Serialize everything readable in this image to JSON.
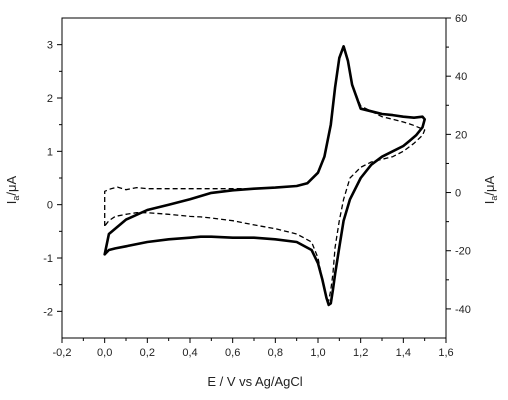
{
  "chart_data": {
    "type": "line",
    "xlabel": "E / V vs Ag/AgCl",
    "ylabel_left": {
      "main": "I",
      "sub": "a",
      "unit": "/μA"
    },
    "ylabel_right": {
      "main": "I",
      "sub": "a",
      "unit": "/μA"
    },
    "xlim": [
      -0.2,
      1.6
    ],
    "ylim_left": [
      -2.5,
      3.5
    ],
    "ylim_right": [
      -50,
      60
    ],
    "x_ticks": [
      -0.2,
      0.0,
      0.2,
      0.4,
      0.6,
      0.8,
      1.0,
      1.2,
      1.4,
      1.6
    ],
    "x_tick_labels": [
      "-0,2",
      "0,0",
      "0,2",
      "0,4",
      "0,6",
      "0,8",
      "1,0",
      "1,2",
      "1,4",
      "1,6"
    ],
    "y_left_ticks": [
      -2,
      -1,
      0,
      1,
      2,
      3
    ],
    "y_left_tick_labels": [
      "-2",
      "-1",
      "0",
      "1",
      "2",
      "3"
    ],
    "y_right_ticks": [
      -40,
      -20,
      0,
      20,
      40,
      60
    ],
    "y_right_tick_labels": [
      "-40",
      "-20",
      "0",
      "20",
      "40",
      "60"
    ],
    "grid": false,
    "colors": {
      "solid": "#000000",
      "dashed": "#000000"
    },
    "series": [
      {
        "axis": "left",
        "style": "solid",
        "x": [
          0.0,
          0.02,
          0.1,
          0.2,
          0.3,
          0.4,
          0.5,
          0.6,
          0.7,
          0.8,
          0.9,
          0.95,
          1.0,
          1.03,
          1.06,
          1.08,
          1.1,
          1.12,
          1.14,
          1.16,
          1.2,
          1.25,
          1.3,
          1.35,
          1.4,
          1.45,
          1.49,
          1.5,
          1.49,
          1.46,
          1.43,
          1.4,
          1.35,
          1.3,
          1.25,
          1.2,
          1.15,
          1.12,
          1.1,
          1.08,
          1.07,
          1.06,
          1.05,
          1.04,
          1.02,
          1.0,
          0.97,
          0.9,
          0.8,
          0.7,
          0.6,
          0.5,
          0.45,
          0.4,
          0.3,
          0.2,
          0.1,
          0.05,
          0.02,
          0.0
        ],
        "y": [
          -0.93,
          -0.55,
          -0.28,
          -0.1,
          0.0,
          0.1,
          0.22,
          0.27,
          0.3,
          0.32,
          0.35,
          0.4,
          0.6,
          0.9,
          1.5,
          2.2,
          2.75,
          2.97,
          2.7,
          2.25,
          1.8,
          1.75,
          1.7,
          1.68,
          1.65,
          1.63,
          1.65,
          1.6,
          1.45,
          1.3,
          1.2,
          1.1,
          1.0,
          0.9,
          0.75,
          0.5,
          0.1,
          -0.3,
          -0.8,
          -1.3,
          -1.6,
          -1.85,
          -1.88,
          -1.75,
          -1.4,
          -1.1,
          -0.85,
          -0.7,
          -0.65,
          -0.62,
          -0.62,
          -0.6,
          -0.6,
          -0.62,
          -0.65,
          -0.7,
          -0.78,
          -0.82,
          -0.85,
          -0.93
        ]
      },
      {
        "axis": "left",
        "style": "dashed",
        "x": [
          0.0,
          0.0,
          0.03,
          0.06,
          0.1,
          0.15,
          0.2,
          0.3,
          0.4,
          0.5,
          0.6,
          0.7,
          0.8,
          0.9,
          0.95,
          1.0,
          1.03,
          1.06,
          1.08,
          1.1,
          1.12,
          1.14,
          1.16,
          1.2,
          1.25,
          1.3,
          1.35,
          1.4,
          1.44,
          1.47,
          1.5,
          1.49,
          1.45,
          1.4,
          1.35,
          1.3,
          1.25,
          1.2,
          1.15,
          1.12,
          1.1,
          1.08,
          1.07,
          1.06,
          1.05,
          1.04,
          1.02,
          1.0,
          0.97,
          0.9,
          0.8,
          0.7,
          0.6,
          0.5,
          0.45,
          0.4,
          0.3,
          0.2,
          0.15,
          0.1,
          0.05,
          0.02,
          0.0
        ],
        "y": [
          -0.4,
          0.25,
          0.3,
          0.33,
          0.28,
          0.32,
          0.3,
          0.3,
          0.3,
          0.3,
          0.3,
          0.3,
          0.32,
          0.35,
          0.4,
          0.6,
          0.9,
          1.5,
          2.2,
          2.75,
          2.95,
          2.7,
          2.25,
          1.85,
          1.75,
          1.65,
          1.6,
          1.55,
          1.5,
          1.45,
          1.4,
          1.3,
          1.15,
          1.0,
          0.9,
          0.85,
          0.8,
          0.7,
          0.5,
          0.1,
          -0.3,
          -0.8,
          -1.3,
          -1.6,
          -1.8,
          -1.75,
          -1.4,
          -1.0,
          -0.7,
          -0.55,
          -0.45,
          -0.38,
          -0.3,
          -0.25,
          -0.23,
          -0.22,
          -0.18,
          -0.15,
          -0.15,
          -0.18,
          -0.22,
          -0.3,
          -0.4
        ]
      }
    ]
  }
}
